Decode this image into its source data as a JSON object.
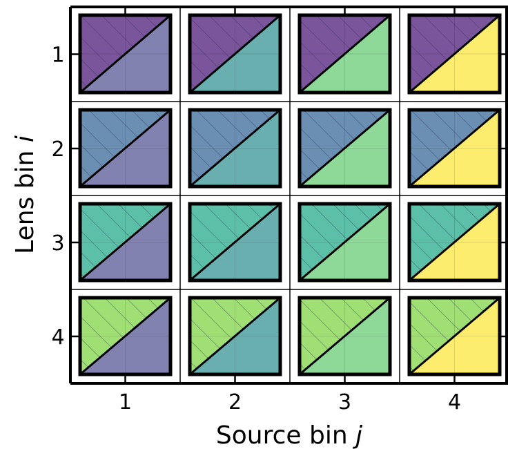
{
  "chart_data": {
    "type": "heatmap",
    "title": "",
    "xlabel": "Source bin",
    "xlabel_var": "j",
    "ylabel": "Lens bin",
    "ylabel_var": "i",
    "x_categories": [
      "1",
      "2",
      "3",
      "4"
    ],
    "y_categories": [
      "1",
      "2",
      "3",
      "4"
    ],
    "cell_style": "split diagonally; upper-left triangle (hatched) colored by lens bin i, lower-right triangle colored by source bin j",
    "lens_bin_colors": [
      "#7b559c",
      "#6a8fb3",
      "#5cc0a8",
      "#9fdf74"
    ],
    "source_bin_colors": [
      "#8282b0",
      "#6aafb0",
      "#8ed898",
      "#fced6f"
    ],
    "grid": true,
    "legend": "none"
  }
}
